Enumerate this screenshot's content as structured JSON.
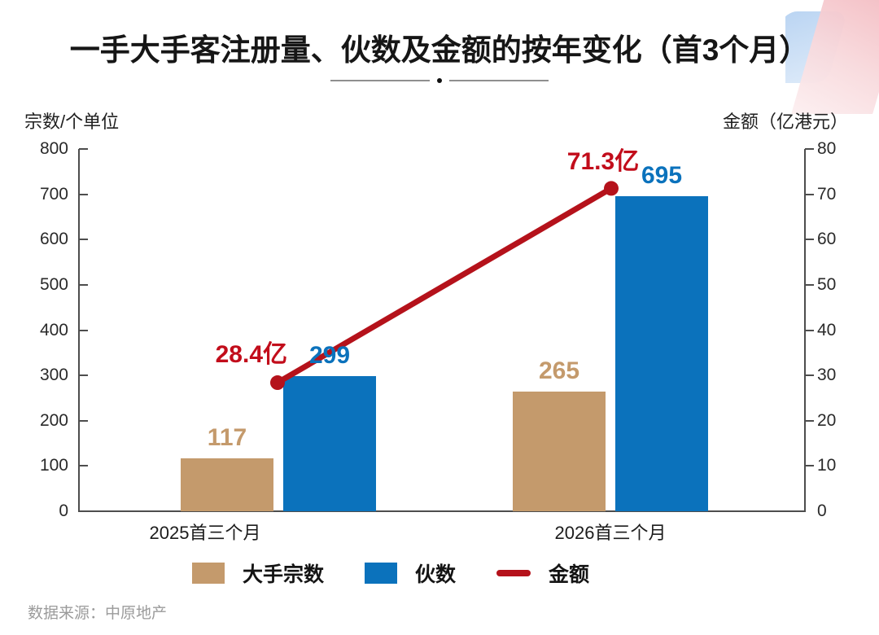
{
  "title": "一手大手客注册量、伙数及金额的按年变化（首3个月）",
  "axes": {
    "left_title": "宗数/个单位",
    "right_title": "金额（亿港元）"
  },
  "source": "数据来源：中原地产",
  "colors": {
    "bar_tan": "#C49A6C",
    "bar_blue": "#0B72BC",
    "line_red": "#B5121B",
    "label_red": "#C20D1B",
    "axis": "#4d4d4d",
    "corner_blue": "#AECDF0",
    "corner_pink": "#F2B4BB"
  },
  "chart_data": {
    "type": "bar",
    "subtype": "combo-dual-axis-bar-line",
    "categories": [
      "2025首三个月",
      "2026首三个月"
    ],
    "series": [
      {
        "name": "大手宗数",
        "type": "bar",
        "axis": "left",
        "color": "#C49A6C",
        "label_color": "#C49A6C",
        "values": [
          117,
          265
        ],
        "value_labels": [
          "117",
          "265"
        ]
      },
      {
        "name": "伙数",
        "type": "bar",
        "axis": "left",
        "color": "#0B72BC",
        "label_color": "#0B72BC",
        "values": [
          299,
          695
        ],
        "value_labels": [
          "299",
          "695"
        ]
      },
      {
        "name": "金额",
        "type": "line",
        "axis": "right",
        "color": "#B5121B",
        "label_color": "#C20D1B",
        "values": [
          28.4,
          71.3
        ],
        "value_labels": [
          "28.4亿",
          "71.3亿"
        ]
      }
    ],
    "left_axis": {
      "min": 0,
      "max": 800,
      "step": 100
    },
    "right_axis": {
      "min": 0,
      "max": 80,
      "step": 10
    },
    "legend": [
      "大手宗数",
      "伙数",
      "金额"
    ],
    "legend_position": "bottom",
    "grid": false
  }
}
